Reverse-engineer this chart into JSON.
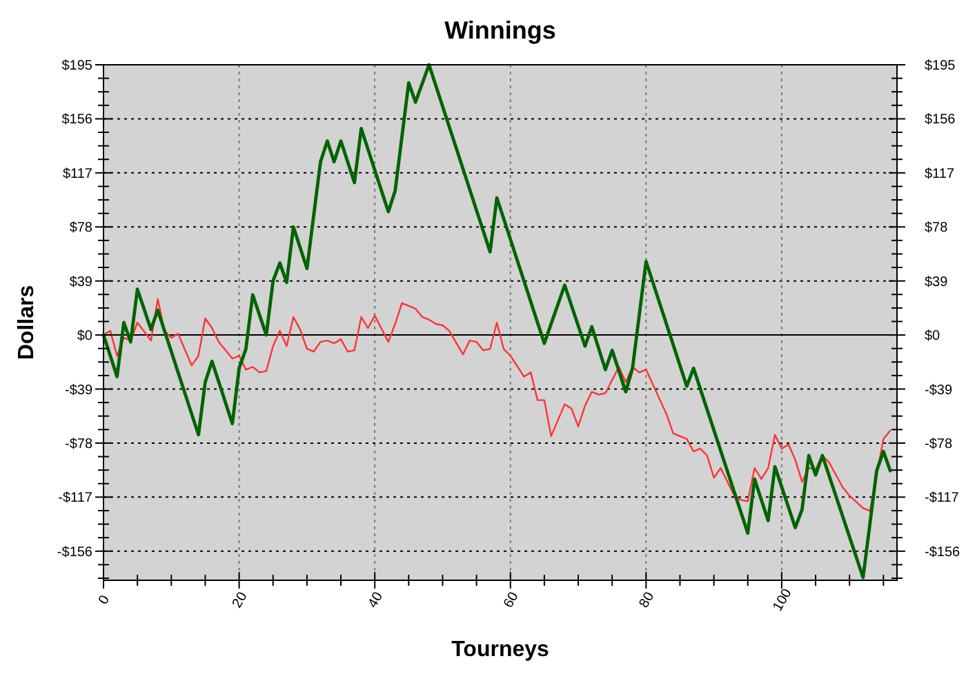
{
  "chart_data": {
    "type": "line",
    "title": "Winnings",
    "xlabel": "Tourneys",
    "ylabel": "Dollars",
    "grid": true,
    "line_style": "solid",
    "marker": "none",
    "xlim": [
      0,
      117
    ],
    "xticks": [
      0,
      {
        "value": 5,
        "label": null
      },
      {
        "value": 10,
        "label": null
      },
      {
        "value": 15,
        "label": null
      },
      20,
      {
        "value": 25,
        "label": null
      },
      {
        "value": 30,
        "label": null
      },
      {
        "value": 35,
        "label": null
      },
      40,
      {
        "value": 45,
        "label": null
      },
      {
        "value": 50,
        "label": null
      },
      {
        "value": 55,
        "label": null
      },
      60,
      {
        "value": 65,
        "label": null
      },
      {
        "value": 70,
        "label": null
      },
      {
        "value": 75,
        "label": null
      },
      80,
      {
        "value": 85,
        "label": null
      },
      {
        "value": 90,
        "label": null
      },
      {
        "value": 95,
        "label": null
      },
      100,
      {
        "value": 105,
        "label": null
      },
      {
        "value": 110,
        "label": null
      },
      {
        "value": 115,
        "label": null
      }
    ],
    "ylim": [
      -177,
      195
    ],
    "yticks": [
      {
        "value": -156,
        "label": "-$156"
      },
      {
        "value": -117,
        "label": "-$117"
      },
      {
        "value": -78,
        "label": "-$78"
      },
      {
        "value": -39,
        "label": "-$39"
      },
      {
        "value": 0,
        "label": "$0"
      },
      {
        "value": 39,
        "label": "$39"
      },
      {
        "value": 78,
        "label": "$78"
      },
      {
        "value": 117,
        "label": "$117"
      },
      {
        "value": 156,
        "label": "$156"
      },
      {
        "value": 195,
        "label": "$195"
      },
      {
        "value": -175.5,
        "label": null
      },
      {
        "value": -165.75,
        "label": null
      },
      {
        "value": -146.25,
        "label": null
      },
      {
        "value": -136.5,
        "label": null
      },
      {
        "value": -126.75,
        "label": null
      },
      {
        "value": -107.25,
        "label": null
      },
      {
        "value": -97.5,
        "label": null
      },
      {
        "value": -87.75,
        "label": null
      },
      {
        "value": -68.25,
        "label": null
      },
      {
        "value": -58.5,
        "label": null
      },
      {
        "value": -48.75,
        "label": null
      },
      {
        "value": -29.25,
        "label": null
      },
      {
        "value": -19.5,
        "label": null
      },
      {
        "value": -9.75,
        "label": null
      },
      {
        "value": 9.75,
        "label": null
      },
      {
        "value": 19.5,
        "label": null
      },
      {
        "value": 29.25,
        "label": null
      },
      {
        "value": 48.75,
        "label": null
      },
      {
        "value": 58.5,
        "label": null
      },
      {
        "value": 68.25,
        "label": null
      },
      {
        "value": 87.75,
        "label": null
      },
      {
        "value": 97.5,
        "label": null
      },
      {
        "value": 107.25,
        "label": null
      },
      {
        "value": 126.75,
        "label": null
      },
      {
        "value": 136.5,
        "label": null
      },
      {
        "value": 146.25,
        "label": null
      },
      {
        "value": 165.75,
        "label": null
      },
      {
        "value": 175.5,
        "label": null
      },
      {
        "value": 185.25,
        "label": null
      }
    ],
    "y2lim": [
      -177,
      195
    ],
    "y2ticks": [
      {
        "value": -156,
        "label": "-$156"
      },
      {
        "value": -117,
        "label": "-$117"
      },
      {
        "value": -78,
        "label": "-$78"
      },
      {
        "value": -39,
        "label": "-$39"
      },
      {
        "value": 0,
        "label": "$0"
      },
      {
        "value": 39,
        "label": "$39"
      },
      {
        "value": 78,
        "label": "$78"
      },
      {
        "value": 117,
        "label": "$117"
      },
      {
        "value": 156,
        "label": "$156"
      },
      {
        "value": 195,
        "label": "$195"
      }
    ],
    "ref_lines": [
      {
        "axis": "y",
        "value": 0,
        "color": "#000000"
      }
    ],
    "series": [
      {
        "color": "#ff3333",
        "x": [
          0,
          1,
          2,
          3,
          4,
          5,
          7,
          8,
          9,
          10,
          11,
          13,
          14,
          15,
          16,
          17,
          19,
          20,
          21,
          22,
          23,
          24,
          25,
          26,
          27,
          28,
          29,
          30,
          31,
          32,
          33,
          34,
          35,
          36,
          37,
          38,
          39,
          40,
          42,
          43,
          44,
          46,
          47,
          48,
          49,
          50,
          51,
          53,
          54,
          55,
          56,
          57,
          58,
          59,
          60,
          62,
          63,
          64,
          65,
          66,
          68,
          69,
          70,
          71,
          72,
          73,
          74,
          76,
          77,
          78,
          79,
          80,
          83,
          84,
          86,
          87,
          88,
          89,
          90,
          91,
          93,
          94,
          95,
          96,
          97,
          98,
          99,
          100,
          101,
          102,
          103,
          104,
          105,
          106,
          107,
          109,
          110,
          112,
          113,
          115,
          116
        ],
        "values": [
          0,
          3,
          -15,
          -2,
          -4,
          9,
          -4,
          26,
          3,
          -2,
          1,
          -22,
          -15,
          12,
          5,
          -5,
          -17,
          -15,
          -25,
          -23,
          -27,
          -26,
          -8,
          3,
          -8,
          13,
          4,
          -10,
          -12,
          -5,
          -4,
          -6,
          -3,
          -12,
          -11,
          13,
          5,
          14,
          -5,
          8,
          23,
          19,
          13,
          11,
          8,
          7,
          3,
          -14,
          -4,
          -5,
          -11,
          -10,
          9,
          -10,
          -15,
          -30,
          -27,
          -47,
          -47,
          -73,
          -50,
          -53,
          -66,
          -51,
          -41,
          -43,
          -42,
          -23,
          -34,
          -23,
          -27,
          -25,
          -57,
          -71,
          -75,
          -84,
          -82,
          -87,
          -103,
          -96,
          -116,
          -119,
          -120,
          -96,
          -104,
          -96,
          -72,
          -82,
          -79,
          -90,
          -106,
          -96,
          -97,
          -87,
          -92,
          -110,
          -116,
          -125,
          -127,
          -75,
          -69
        ]
      },
      {
        "color": "#006400",
        "x": [
          0,
          2,
          3,
          4,
          5,
          7,
          8,
          14,
          15,
          16,
          19,
          20,
          21,
          22,
          24,
          25,
          26,
          27,
          28,
          30,
          32,
          33,
          34,
          35,
          37,
          38,
          42,
          43,
          45,
          46,
          48,
          57,
          58,
          65,
          68,
          71,
          72,
          74,
          75,
          77,
          78,
          80,
          86,
          87,
          95,
          96,
          98,
          99,
          102,
          103,
          104,
          105,
          106,
          112,
          114,
          115,
          116
        ],
        "values": [
          0,
          -30,
          9,
          -5,
          33,
          4,
          18,
          -72,
          -34,
          -19,
          -64,
          -24,
          -10,
          29,
          0,
          39,
          52,
          38,
          78,
          48,
          125,
          140,
          125,
          140,
          110,
          149,
          89,
          104,
          182,
          168,
          195,
          60,
          99,
          -6,
          36,
          -8,
          6,
          -25,
          -11,
          -41,
          -24,
          53,
          -37,
          -24,
          -143,
          -104,
          -134,
          -95,
          -139,
          -126,
          -87,
          -101,
          -87,
          -175,
          -98,
          -84,
          -98
        ]
      }
    ]
  }
}
